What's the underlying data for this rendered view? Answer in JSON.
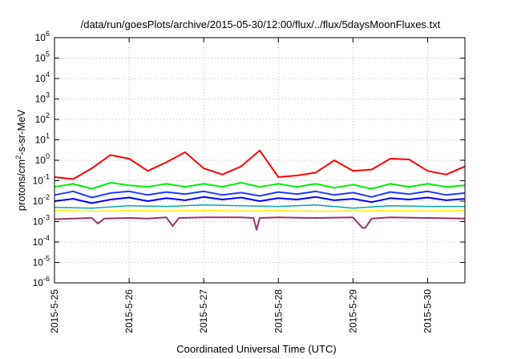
{
  "chart_data": {
    "type": "line",
    "title": "/data/run/goesPlots/archive/2015-05-30/12:00/flux/../flux/5daysMoonFluxes.txt",
    "xlabel": "Coordinated Universal Time (UTC)",
    "ylabel": {
      "prefix": "protons/cm",
      "superscript": "2",
      "suffix": "-s-sr-MeV"
    },
    "yscale": "log",
    "ylim": [
      1e-06,
      1000000
    ],
    "xlim": [
      "2015-05-25",
      "2015-05-30T12:00"
    ],
    "grid": true,
    "x_ticks": [
      {
        "date": "2015-05-25",
        "label": "2015-5-25"
      },
      {
        "date": "2015-05-26",
        "label": "2015-5-26"
      },
      {
        "date": "2015-05-27",
        "label": "2015-5-27"
      },
      {
        "date": "2015-05-28",
        "label": "2015-5-28"
      },
      {
        "date": "2015-05-29",
        "label": "2015-5-29"
      },
      {
        "date": "2015-05-30",
        "label": "2015-5-30"
      }
    ],
    "y_ticks": [
      {
        "value": 1e-06,
        "base": "10",
        "exp": "-6"
      },
      {
        "value": 1e-05,
        "base": "10",
        "exp": "-5"
      },
      {
        "value": 0.0001,
        "base": "10",
        "exp": "-4"
      },
      {
        "value": 0.001,
        "base": "10",
        "exp": "-3"
      },
      {
        "value": 0.01,
        "base": "10",
        "exp": "-2"
      },
      {
        "value": 0.1,
        "base": "10",
        "exp": "-1"
      },
      {
        "value": 1,
        "base": "10",
        "exp": "0"
      },
      {
        "value": 10,
        "base": "10",
        "exp": "1"
      },
      {
        "value": 100,
        "base": "10",
        "exp": "2"
      },
      {
        "value": 1000,
        "base": "10",
        "exp": "3"
      },
      {
        "value": 10000,
        "base": "10",
        "exp": "4"
      },
      {
        "value": 100000,
        "base": "10",
        "exp": "5"
      },
      {
        "value": 1000000,
        "base": "10",
        "exp": "6"
      }
    ],
    "series": [
      {
        "color": "#ffee00",
        "width": 1.5,
        "x": [
          "2015-05-25T00:00",
          "2015-05-25T12:00",
          "2015-05-26T00:00",
          "2015-05-26T12:00",
          "2015-05-27T00:00",
          "2015-05-27T12:00",
          "2015-05-28T00:00",
          "2015-05-28T12:00",
          "2015-05-29T00:00",
          "2015-05-29T12:00",
          "2015-05-30T00:00",
          "2015-05-30T12:00"
        ],
        "values": [
          0.0035,
          0.0032,
          0.0034,
          0.0033,
          0.0035,
          0.0033,
          0.0034,
          0.0032,
          0.0033,
          0.0034,
          0.0033,
          0.0034
        ]
      },
      {
        "color": "#993366",
        "width": 2,
        "x": [
          "2015-05-25T00:00",
          "2015-05-25T06:00",
          "2015-05-25T12:00",
          "2015-05-25T14:00",
          "2015-05-25T16:00",
          "2015-05-26T00:00",
          "2015-05-26T06:00",
          "2015-05-26T12:00",
          "2015-05-26T14:00",
          "2015-05-26T16:00",
          "2015-05-27T00:00",
          "2015-05-27T12:00",
          "2015-05-27T16:00",
          "2015-05-27T17:00",
          "2015-05-27T18:00",
          "2015-05-28T00:00",
          "2015-05-28T12:00",
          "2015-05-29T00:00",
          "2015-05-29T03:00",
          "2015-05-29T04:00",
          "2015-05-29T06:00",
          "2015-05-29T12:00",
          "2015-05-30T00:00",
          "2015-05-30T12:00"
        ],
        "values": [
          0.0013,
          0.0014,
          0.0015,
          0.0008,
          0.0014,
          0.0015,
          0.0014,
          0.0016,
          0.0006,
          0.0015,
          0.0016,
          0.0016,
          0.0015,
          0.0004,
          0.0015,
          0.0016,
          0.0015,
          0.0016,
          0.0005,
          0.0005,
          0.0014,
          0.0016,
          0.0015,
          0.0014
        ]
      },
      {
        "color": "#00aaaa",
        "width": 1.5,
        "x": [
          "2015-05-25T00:00",
          "2015-05-25T12:00",
          "2015-05-26T00:00",
          "2015-05-26T12:00",
          "2015-05-27T00:00",
          "2015-05-27T12:00",
          "2015-05-28T00:00",
          "2015-05-28T12:00",
          "2015-05-29T00:00",
          "2015-05-29T12:00",
          "2015-05-30T00:00",
          "2015-05-30T12:00"
        ],
        "values": [
          0.005,
          0.0045,
          0.006,
          0.0055,
          0.0065,
          0.006,
          0.0055,
          0.0065,
          0.0045,
          0.006,
          0.0055,
          0.0055
        ]
      },
      {
        "color": "#0000ff",
        "width": 2,
        "x": [
          "2015-05-25T00:00",
          "2015-05-25T06:00",
          "2015-05-25T12:00",
          "2015-05-25T18:00",
          "2015-05-26T00:00",
          "2015-05-26T06:00",
          "2015-05-26T12:00",
          "2015-05-26T18:00",
          "2015-05-27T00:00",
          "2015-05-27T06:00",
          "2015-05-27T12:00",
          "2015-05-27T18:00",
          "2015-05-28T00:00",
          "2015-05-28T06:00",
          "2015-05-28T12:00",
          "2015-05-28T18:00",
          "2015-05-29T00:00",
          "2015-05-29T06:00",
          "2015-05-29T12:00",
          "2015-05-29T18:00",
          "2015-05-30T00:00",
          "2015-05-30T06:00",
          "2015-05-30T12:00"
        ],
        "values": [
          0.01,
          0.013,
          0.008,
          0.012,
          0.015,
          0.01,
          0.014,
          0.011,
          0.016,
          0.012,
          0.015,
          0.01,
          0.014,
          0.012,
          0.016,
          0.011,
          0.013,
          0.009,
          0.014,
          0.012,
          0.015,
          0.011,
          0.013
        ]
      },
      {
        "color": "#1e3cff",
        "width": 2,
        "x": [
          "2015-05-25T00:00",
          "2015-05-25T06:00",
          "2015-05-25T12:00",
          "2015-05-25T18:00",
          "2015-05-26T00:00",
          "2015-05-26T06:00",
          "2015-05-26T12:00",
          "2015-05-26T18:00",
          "2015-05-27T00:00",
          "2015-05-27T06:00",
          "2015-05-27T12:00",
          "2015-05-27T18:00",
          "2015-05-28T00:00",
          "2015-05-28T06:00",
          "2015-05-28T12:00",
          "2015-05-28T18:00",
          "2015-05-29T00:00",
          "2015-05-29T06:00",
          "2015-05-29T12:00",
          "2015-05-29T18:00",
          "2015-05-30T00:00",
          "2015-05-30T06:00",
          "2015-05-30T12:00"
        ],
        "values": [
          0.02,
          0.03,
          0.015,
          0.025,
          0.03,
          0.02,
          0.028,
          0.022,
          0.03,
          0.02,
          0.026,
          0.018,
          0.028,
          0.022,
          0.03,
          0.02,
          0.026,
          0.016,
          0.028,
          0.022,
          0.03,
          0.02,
          0.025
        ]
      },
      {
        "color": "#00ee00",
        "width": 2,
        "x": [
          "2015-05-25T00:00",
          "2015-05-25T06:00",
          "2015-05-25T12:00",
          "2015-05-25T18:00",
          "2015-05-26T00:00",
          "2015-05-26T06:00",
          "2015-05-26T12:00",
          "2015-05-26T18:00",
          "2015-05-27T00:00",
          "2015-05-27T06:00",
          "2015-05-27T12:00",
          "2015-05-27T18:00",
          "2015-05-28T00:00",
          "2015-05-28T06:00",
          "2015-05-28T12:00",
          "2015-05-28T18:00",
          "2015-05-29T00:00",
          "2015-05-29T06:00",
          "2015-05-29T12:00",
          "2015-05-29T18:00",
          "2015-05-30T00:00",
          "2015-05-30T06:00",
          "2015-05-30T12:00"
        ],
        "values": [
          0.05,
          0.07,
          0.04,
          0.08,
          0.06,
          0.05,
          0.07,
          0.05,
          0.07,
          0.05,
          0.08,
          0.05,
          0.07,
          0.05,
          0.07,
          0.045,
          0.065,
          0.04,
          0.07,
          0.05,
          0.07,
          0.05,
          0.06
        ]
      },
      {
        "color": "#ff0000",
        "width": 2,
        "x": [
          "2015-05-25T00:00",
          "2015-05-25T06:00",
          "2015-05-25T12:00",
          "2015-05-25T18:00",
          "2015-05-26T00:00",
          "2015-05-26T06:00",
          "2015-05-26T12:00",
          "2015-05-26T18:00",
          "2015-05-27T00:00",
          "2015-05-27T06:00",
          "2015-05-27T12:00",
          "2015-05-27T18:00",
          "2015-05-28T00:00",
          "2015-05-28T06:00",
          "2015-05-28T12:00",
          "2015-05-28T18:00",
          "2015-05-29T00:00",
          "2015-05-29T06:00",
          "2015-05-29T12:00",
          "2015-05-29T18:00",
          "2015-05-30T00:00",
          "2015-05-30T06:00",
          "2015-05-30T12:00"
        ],
        "values": [
          0.15,
          0.12,
          0.4,
          1.8,
          1.2,
          0.3,
          0.8,
          2.5,
          0.4,
          0.2,
          0.5,
          3.0,
          0.15,
          0.18,
          0.25,
          1.0,
          0.3,
          0.35,
          1.2,
          1.1,
          0.3,
          0.2,
          0.5
        ]
      }
    ]
  }
}
